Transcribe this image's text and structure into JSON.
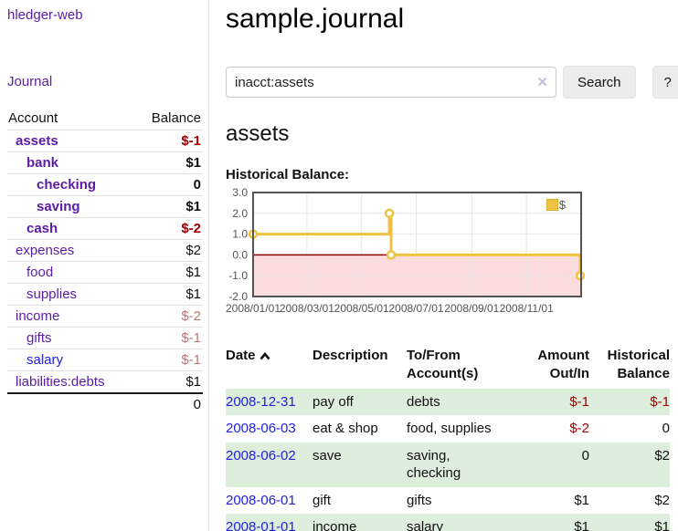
{
  "app": {
    "brand": "hledger-web",
    "nav": {
      "journal": "Journal"
    }
  },
  "sidebar": {
    "headers": {
      "account": "Account",
      "balance": "Balance"
    },
    "accounts": [
      {
        "name": "assets",
        "balance": "$-1"
      },
      {
        "name": "bank",
        "balance": "$1"
      },
      {
        "name": "checking",
        "balance": "0"
      },
      {
        "name": "saving",
        "balance": "$1"
      },
      {
        "name": "cash",
        "balance": "$-2"
      },
      {
        "name": "expenses",
        "balance": "$2"
      },
      {
        "name": "food",
        "balance": "$1"
      },
      {
        "name": "supplies",
        "balance": "$1"
      },
      {
        "name": "income",
        "balance": "$-2"
      },
      {
        "name": "gifts",
        "balance": "$-1"
      },
      {
        "name": "salary",
        "balance": "$-1"
      },
      {
        "name": "liabilities:debts",
        "balance": "$1"
      }
    ],
    "total": "0"
  },
  "header": {
    "title": "sample.journal"
  },
  "search": {
    "value": "inacct:assets",
    "clear_icon": "✕",
    "search_button": "Search",
    "help_button": "?"
  },
  "account_page": {
    "heading": "assets",
    "chart_label": "Historical Balance:"
  },
  "chart_data": {
    "type": "line",
    "title": "Historical Balance",
    "style": "step",
    "series": [
      {
        "name": "$",
        "color": "#EDC240",
        "points": [
          [
            "2008-01-01",
            1
          ],
          [
            "2008-06-01",
            2
          ],
          [
            "2008-06-03",
            0
          ],
          [
            "2008-12-31",
            -1
          ]
        ]
      }
    ],
    "xlim": [
      "2008-01-01",
      "2009-01-01"
    ],
    "ylim": [
      -2,
      3
    ],
    "yticks": [
      3,
      2,
      1,
      0,
      -1,
      -2
    ],
    "xticks": [
      {
        "date": "2008-01-01",
        "label": "2008/01/01"
      },
      {
        "date": "2008-03-01",
        "label": "2008/03/01"
      },
      {
        "date": "2008-05-01",
        "label": "2008/05/01"
      },
      {
        "date": "2008-07-01",
        "label": "2008/07/01"
      },
      {
        "date": "2008-09-01",
        "label": "2008/09/01"
      },
      {
        "date": "2008-11-01",
        "label": "2008/11/01"
      }
    ],
    "grid": true,
    "legend_position": "top-right",
    "colors": {
      "line": "#EDC240",
      "negative_region": "#fbdcdc",
      "zero_line": "#8b0000",
      "grid": "#e6e6e6",
      "border": "#545454"
    }
  },
  "register": {
    "headers": [
      "Date",
      "Description",
      "To/From Account(s)",
      "Amount Out/In",
      "Historical Balance"
    ],
    "sort": {
      "column": "Date",
      "direction": "ascending"
    },
    "rows": [
      {
        "date": "2008-12-31",
        "description": "pay off",
        "accounts": "debts",
        "amount": "$-1",
        "balance": "$-1"
      },
      {
        "date": "2008-06-03",
        "description": "eat & shop",
        "accounts": "food, supplies",
        "amount": "$-2",
        "balance": "0"
      },
      {
        "date": "2008-06-02",
        "description": "save",
        "accounts": "saving,\nchecking",
        "amount": "0",
        "balance": "$2"
      },
      {
        "date": "2008-06-01",
        "description": "gift",
        "accounts": "gifts",
        "amount": "$1",
        "balance": "$2"
      },
      {
        "date": "2008-01-01",
        "description": "income",
        "accounts": "salary",
        "amount": "$1",
        "balance": "$1"
      }
    ]
  }
}
